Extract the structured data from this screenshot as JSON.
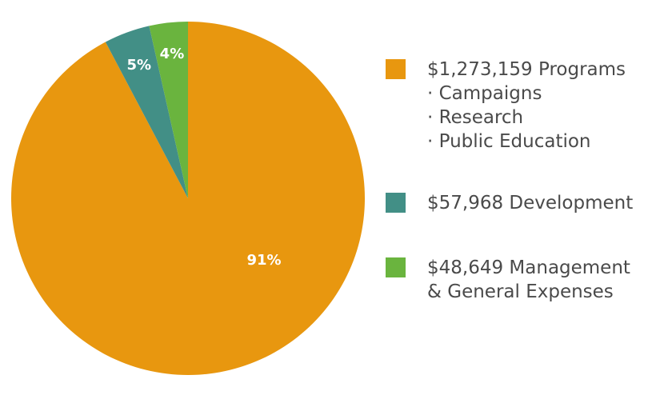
{
  "chart_data": {
    "type": "pie",
    "slices": [
      {
        "label": "91%",
        "value": 1273159,
        "percent": 91,
        "color": "#E8970F"
      },
      {
        "label": "5%",
        "value": 57968,
        "percent": 5,
        "color": "#428F86"
      },
      {
        "label": "4%",
        "value": 48649,
        "percent": 4,
        "color": "#6AB43E"
      }
    ],
    "legend_placement": "right"
  },
  "legend": {
    "programs": {
      "title": "$1,273,159 Programs",
      "items": [
        "· Campaigns",
        "· Research",
        "· Public Education"
      ]
    },
    "development": {
      "title": "$57,968 Development"
    },
    "management": {
      "line1": "$48,649 Management",
      "line2": "& General Expenses"
    }
  }
}
